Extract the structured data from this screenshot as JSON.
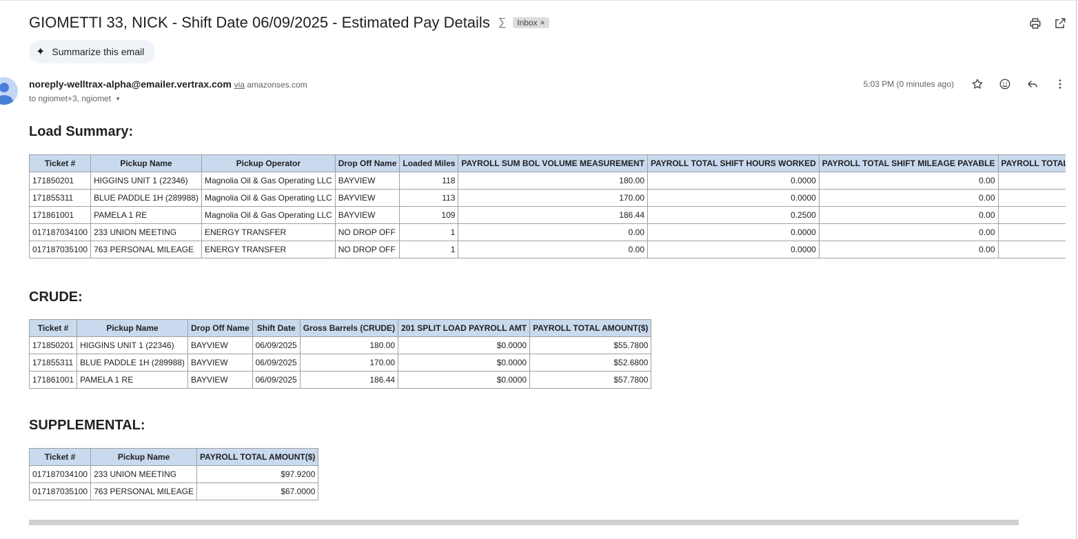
{
  "email": {
    "subject": "GIOMETTI 33, NICK - Shift Date 06/09/2025 - Estimated Pay Details",
    "label_chip": "Inbox",
    "summarize_label": "Summarize this email",
    "sender": "noreply-welltrax-alpha@emailer.vertrax.com",
    "via_word": "via",
    "via_domain": "amazonses.com",
    "recipients": "to ngiomet+3, ngiomet",
    "time": "5:03 PM (0 minutes ago)"
  },
  "load_summary": {
    "title": "Load Summary:",
    "headers": [
      "Ticket #",
      "Pickup Name",
      "Pickup Operator",
      "Drop Off Name",
      "Loaded Miles",
      "PAYROLL SUM BOL VOLUME MEASUREMENT",
      "PAYROLL TOTAL SHIFT HOURS WORKED",
      "PAYROLL TOTAL SHIFT MILEAGE PAYABLE",
      "PAYROLL TOTAL AMOUNT($)"
    ],
    "rows": [
      [
        "171850201",
        "HIGGINS UNIT 1 (22346)",
        "Magnolia Oil & Gas Operating LLC",
        "BAYVIEW",
        "118",
        "180.00",
        "0.0000",
        "0.00",
        ""
      ],
      [
        "171855311",
        "BLUE PADDLE 1H (289988)",
        "Magnolia Oil & Gas Operating LLC",
        "BAYVIEW",
        "113",
        "170.00",
        "0.0000",
        "0.00",
        ""
      ],
      [
        "171861001",
        "PAMELA 1 RE",
        "Magnolia Oil & Gas Operating LLC",
        "BAYVIEW",
        "109",
        "186.44",
        "0.2500",
        "0.00",
        ""
      ],
      [
        "017187034100",
        "233 UNION MEETING",
        "ENERGY TRANSFER",
        "NO DROP OFF",
        "1",
        "0.00",
        "0.0000",
        "0.00",
        ""
      ],
      [
        "017187035100",
        "763 PERSONAL MILEAGE",
        "ENERGY TRANSFER",
        "NO DROP OFF",
        "1",
        "0.00",
        "0.0000",
        "0.00",
        ""
      ]
    ]
  },
  "crude": {
    "title": "CRUDE:",
    "headers": [
      "Ticket #",
      "Pickup Name",
      "Drop Off Name",
      "Shift Date",
      "Gross Barrels (CRUDE)",
      "201 SPLIT LOAD PAYROLL AMT",
      "PAYROLL TOTAL AMOUNT($)"
    ],
    "rows": [
      [
        "171850201",
        "HIGGINS UNIT 1 (22346)",
        "BAYVIEW",
        "06/09/2025",
        "180.00",
        "$0.0000",
        "$55.7800"
      ],
      [
        "171855311",
        "BLUE PADDLE 1H (289988)",
        "BAYVIEW",
        "06/09/2025",
        "170.00",
        "$0.0000",
        "$52.6800"
      ],
      [
        "171861001",
        "PAMELA 1 RE",
        "BAYVIEW",
        "06/09/2025",
        "186.44",
        "$0.0000",
        "$57.7800"
      ]
    ]
  },
  "supplemental": {
    "title": "SUPPLEMENTAL:",
    "headers": [
      "Ticket #",
      "Pickup Name",
      "PAYROLL TOTAL AMOUNT($)"
    ],
    "rows": [
      [
        "017187034100",
        "233 UNION MEETING",
        "$97.9200"
      ],
      [
        "017187035100",
        "763 PERSONAL MILEAGE",
        "$67.0000"
      ]
    ]
  }
}
